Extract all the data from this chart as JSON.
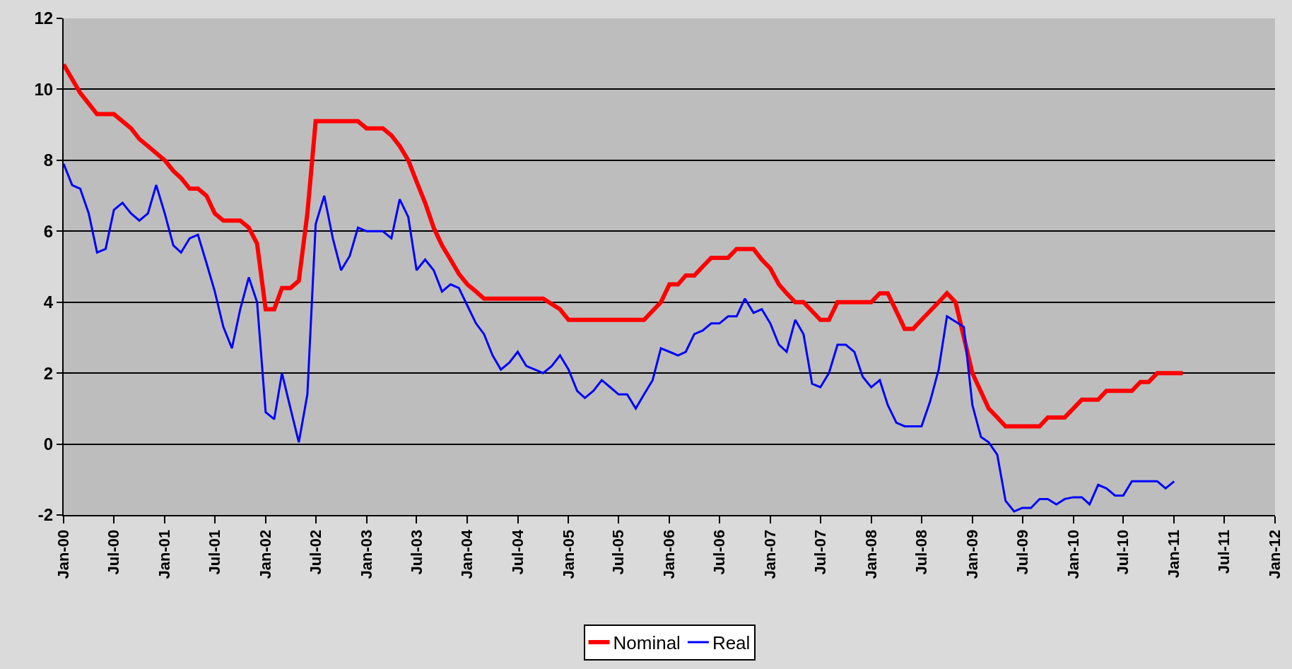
{
  "chart_data": {
    "type": "line",
    "series": [
      {
        "name": "Nominal",
        "color": "#ff0000",
        "x": [
          "2000-01",
          "2000-03",
          "2000-05",
          "2000-07",
          "2000-08",
          "2000-09",
          "2000-10",
          "2000-11",
          "2000-12",
          "2001-01",
          "2001-02",
          "2001-03",
          "2001-04",
          "2001-05",
          "2001-06",
          "2001-07",
          "2001-08",
          "2001-10",
          "2001-11",
          "2001-12",
          "2002-01",
          "2002-02",
          "2002-03",
          "2002-04",
          "2002-05",
          "2002-06",
          "2002-07",
          "2002-12",
          "2003-01",
          "2003-03",
          "2003-04",
          "2003-05",
          "2003-06",
          "2003-07",
          "2003-08",
          "2003-09",
          "2003-10",
          "2003-11",
          "2003-12",
          "2004-01",
          "2004-02",
          "2004-03",
          "2004-10",
          "2004-12",
          "2005-01",
          "2005-10",
          "2005-12",
          "2006-01",
          "2006-02",
          "2006-03",
          "2006-04",
          "2006-05",
          "2006-06",
          "2006-08",
          "2006-09",
          "2006-11",
          "2006-12",
          "2007-01",
          "2007-02",
          "2007-03",
          "2007-04",
          "2007-05",
          "2007-07",
          "2007-08",
          "2007-09",
          "2008-01",
          "2008-02",
          "2008-03",
          "2008-05",
          "2008-06",
          "2008-07",
          "2008-08",
          "2008-09",
          "2008-10",
          "2008-11",
          "2009-01",
          "2009-03",
          "2009-04",
          "2009-05",
          "2009-09",
          "2009-10",
          "2009-12",
          "2010-01",
          "2010-02",
          "2010-04",
          "2010-05",
          "2010-08",
          "2010-09",
          "2010-10",
          "2010-11",
          "2011-02"
        ],
        "values": [
          10.7,
          9.9,
          9.3,
          9.3,
          9.1,
          8.9,
          8.6,
          8.4,
          8.2,
          8.0,
          7.7,
          7.5,
          7.2,
          7.2,
          7.0,
          6.5,
          6.3,
          6.3,
          6.1,
          5.65,
          3.8,
          3.8,
          4.4,
          4.4,
          4.6,
          6.5,
          9.1,
          9.1,
          8.9,
          8.9,
          8.7,
          8.4,
          8.0,
          7.4,
          6.8,
          6.1,
          5.6,
          5.2,
          4.8,
          4.5,
          4.3,
          4.1,
          4.1,
          3.8,
          3.5,
          3.5,
          4.0,
          4.5,
          4.5,
          4.75,
          4.75,
          5.0,
          5.25,
          5.25,
          5.5,
          5.5,
          5.2,
          4.95,
          4.5,
          4.25,
          4.0,
          4.0,
          3.5,
          3.5,
          4.0,
          4.0,
          4.25,
          4.25,
          3.25,
          3.25,
          3.5,
          3.75,
          4.0,
          4.25,
          4.0,
          2.0,
          1.0,
          0.75,
          0.5,
          0.5,
          0.75,
          0.75,
          1.0,
          1.25,
          1.25,
          1.5,
          1.5,
          1.75,
          1.75,
          2.0,
          2.0
        ]
      },
      {
        "name": "Real",
        "color": "#0000ff",
        "x": [
          "2000-01",
          "2000-02",
          "2000-03",
          "2000-04",
          "2000-05",
          "2000-06",
          "2000-07",
          "2000-08",
          "2000-09",
          "2000-10",
          "2000-11",
          "2000-12",
          "2001-01",
          "2001-02",
          "2001-03",
          "2001-04",
          "2001-05",
          "2001-06",
          "2001-07",
          "2001-08",
          "2001-09",
          "2001-10",
          "2001-11",
          "2001-12",
          "2002-01",
          "2002-02",
          "2002-03",
          "2002-04",
          "2002-05",
          "2002-06",
          "2002-07",
          "2002-08",
          "2002-09",
          "2002-10",
          "2002-11",
          "2002-12",
          "2003-01",
          "2003-03",
          "2003-04",
          "2003-05",
          "2003-06",
          "2003-07",
          "2003-08",
          "2003-09",
          "2003-10",
          "2003-11",
          "2003-12",
          "2004-01",
          "2004-02",
          "2004-03",
          "2004-04",
          "2004-05",
          "2004-06",
          "2004-07",
          "2004-08",
          "2004-09",
          "2004-10",
          "2004-11",
          "2004-12",
          "2005-01",
          "2005-02",
          "2005-03",
          "2005-04",
          "2005-05",
          "2005-06",
          "2005-07",
          "2005-08",
          "2005-09",
          "2005-10",
          "2005-11",
          "2005-12",
          "2006-01",
          "2006-02",
          "2006-03",
          "2006-04",
          "2006-05",
          "2006-06",
          "2006-07",
          "2006-08",
          "2006-09",
          "2006-10",
          "2006-11",
          "2006-12",
          "2007-01",
          "2007-02",
          "2007-03",
          "2007-04",
          "2007-05",
          "2007-06",
          "2007-07",
          "2007-08",
          "2007-09",
          "2007-10",
          "2007-11",
          "2007-12",
          "2008-01",
          "2008-02",
          "2008-03",
          "2008-04",
          "2008-05",
          "2008-07",
          "2008-08",
          "2008-09",
          "2008-10",
          "2008-11",
          "2008-12",
          "2009-01",
          "2009-02",
          "2009-03",
          "2009-04",
          "2009-05",
          "2009-06",
          "2009-07",
          "2009-08",
          "2009-09",
          "2009-10",
          "2009-11",
          "2009-12",
          "2010-01",
          "2010-02",
          "2010-03",
          "2010-04",
          "2010-05",
          "2010-06",
          "2010-07",
          "2010-08",
          "2010-09",
          "2010-11",
          "2010-12",
          "2011-01"
        ],
        "values": [
          7.9,
          7.3,
          7.2,
          6.5,
          5.4,
          5.5,
          6.6,
          6.8,
          6.5,
          6.3,
          6.5,
          7.3,
          6.5,
          5.6,
          5.4,
          5.8,
          5.9,
          5.1,
          4.3,
          3.3,
          2.7,
          3.8,
          4.7,
          4.0,
          0.9,
          0.7,
          2.0,
          1.0,
          0.05,
          1.4,
          6.2,
          7.0,
          5.8,
          4.9,
          5.3,
          6.1,
          6.0,
          6.0,
          5.8,
          6.9,
          6.4,
          4.9,
          5.2,
          4.9,
          4.3,
          4.5,
          4.4,
          3.9,
          3.4,
          3.1,
          2.5,
          2.1,
          2.3,
          2.6,
          2.2,
          2.1,
          2.0,
          2.2,
          2.5,
          2.1,
          1.5,
          1.3,
          1.5,
          1.8,
          1.6,
          1.4,
          1.4,
          1.0,
          1.4,
          1.8,
          2.7,
          2.6,
          2.5,
          2.6,
          3.1,
          3.2,
          3.4,
          3.4,
          3.6,
          3.6,
          4.1,
          3.7,
          3.8,
          3.4,
          2.8,
          2.6,
          3.5,
          3.1,
          1.7,
          1.6,
          2.0,
          2.8,
          2.8,
          2.6,
          1.9,
          1.6,
          1.8,
          1.1,
          0.6,
          0.5,
          0.5,
          1.2,
          2.1,
          3.6,
          3.45,
          3.3,
          1.1,
          0.2,
          0.05,
          -0.3,
          -1.6,
          -1.9,
          -1.8,
          -1.8,
          -1.55,
          -1.55,
          -1.7,
          -1.55,
          -1.5,
          -1.5,
          -1.7,
          -1.15,
          -1.25,
          -1.45,
          -1.45,
          -1.05,
          -1.05,
          -1.05,
          -1.25,
          -1.05
        ]
      }
    ],
    "xlim": [
      "2000-01",
      "2012-01"
    ],
    "xticks": [
      {
        "value": "2000-01",
        "label": "Jan-00"
      },
      {
        "value": "2000-07",
        "label": "Jul-00"
      },
      {
        "value": "2001-01",
        "label": "Jan-01"
      },
      {
        "value": "2001-07",
        "label": "Jul-01"
      },
      {
        "value": "2002-01",
        "label": "Jan-02"
      },
      {
        "value": "2002-07",
        "label": "Jul-02"
      },
      {
        "value": "2003-01",
        "label": "Jan-03"
      },
      {
        "value": "2003-07",
        "label": "Jul-03"
      },
      {
        "value": "2004-01",
        "label": "Jan-04"
      },
      {
        "value": "2004-07",
        "label": "Jul-04"
      },
      {
        "value": "2005-01",
        "label": "Jan-05"
      },
      {
        "value": "2005-07",
        "label": "Jul-05"
      },
      {
        "value": "2006-01",
        "label": "Jan-06"
      },
      {
        "value": "2006-07",
        "label": "Jul-06"
      },
      {
        "value": "2007-01",
        "label": "Jan-07"
      },
      {
        "value": "2007-07",
        "label": "Jul-07"
      },
      {
        "value": "2008-01",
        "label": "Jan-08"
      },
      {
        "value": "2008-07",
        "label": "Jul-08"
      },
      {
        "value": "2009-01",
        "label": "Jan-09"
      },
      {
        "value": "2009-07",
        "label": "Jul-09"
      },
      {
        "value": "2010-01",
        "label": "Jan-10"
      },
      {
        "value": "2010-07",
        "label": "Jul-10"
      },
      {
        "value": "2011-01",
        "label": "Jan-11"
      },
      {
        "value": "2011-07",
        "label": "Jul-11"
      },
      {
        "value": "2012-01",
        "label": "Jan-12"
      }
    ],
    "ylim": [
      -2,
      12
    ],
    "yticks": [
      -2,
      0,
      2,
      4,
      6,
      8,
      10,
      12
    ],
    "grid": "y",
    "legend": "bottom",
    "marker": "none",
    "line_style": "solid"
  }
}
